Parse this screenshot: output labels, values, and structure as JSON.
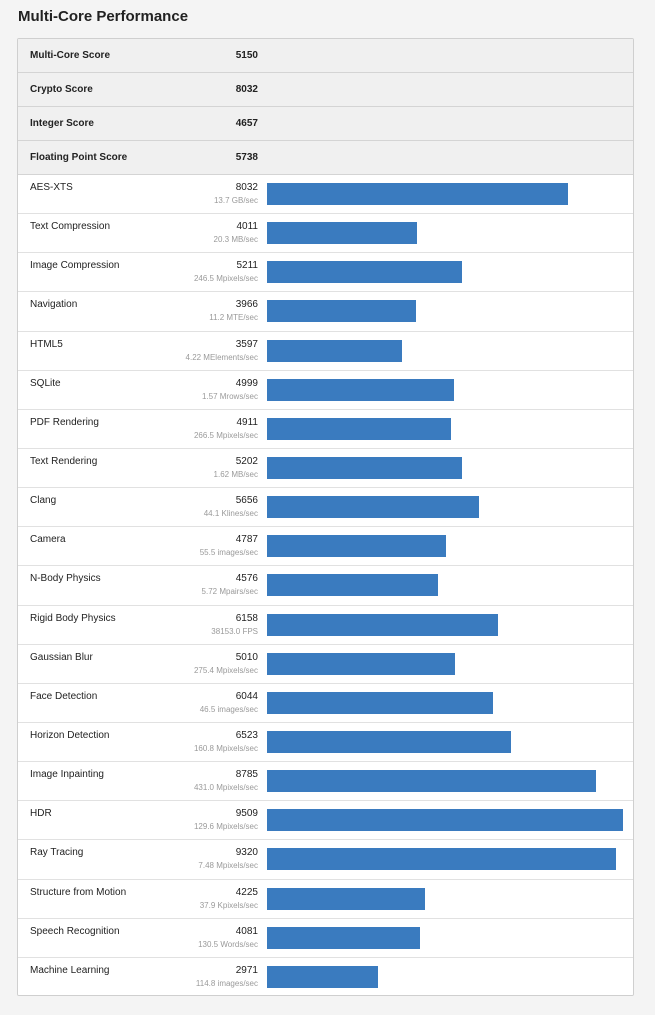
{
  "title": "Multi-Core Performance",
  "colors": {
    "bar": "#3a7bbf",
    "subtext": "#9a9a9a",
    "header_row_bg": "#f0f0f0"
  },
  "bar_max_score": 9509,
  "summary": [
    {
      "label": "Multi-Core Score",
      "value": "5150"
    },
    {
      "label": "Crypto Score",
      "value": "8032"
    },
    {
      "label": "Integer Score",
      "value": "4657"
    },
    {
      "label": "Floating Point Score",
      "value": "5738"
    }
  ],
  "benchmarks": [
    {
      "name": "AES-XTS",
      "score": "8032",
      "rate": "13.7 GB/sec"
    },
    {
      "name": "Text Compression",
      "score": "4011",
      "rate": "20.3 MB/sec"
    },
    {
      "name": "Image Compression",
      "score": "5211",
      "rate": "246.5 Mpixels/sec"
    },
    {
      "name": "Navigation",
      "score": "3966",
      "rate": "11.2 MTE/sec"
    },
    {
      "name": "HTML5",
      "score": "3597",
      "rate": "4.22 MElements/sec"
    },
    {
      "name": "SQLite",
      "score": "4999",
      "rate": "1.57 Mrows/sec"
    },
    {
      "name": "PDF Rendering",
      "score": "4911",
      "rate": "266.5 Mpixels/sec"
    },
    {
      "name": "Text Rendering",
      "score": "5202",
      "rate": "1.62 MB/sec"
    },
    {
      "name": "Clang",
      "score": "5656",
      "rate": "44.1 Klines/sec"
    },
    {
      "name": "Camera",
      "score": "4787",
      "rate": "55.5 images/sec"
    },
    {
      "name": "N-Body Physics",
      "score": "4576",
      "rate": "5.72 Mpairs/sec"
    },
    {
      "name": "Rigid Body Physics",
      "score": "6158",
      "rate": "38153.0 FPS"
    },
    {
      "name": "Gaussian Blur",
      "score": "5010",
      "rate": "275.4 Mpixels/sec"
    },
    {
      "name": "Face Detection",
      "score": "6044",
      "rate": "46.5 images/sec"
    },
    {
      "name": "Horizon Detection",
      "score": "6523",
      "rate": "160.8 Mpixels/sec"
    },
    {
      "name": "Image Inpainting",
      "score": "8785",
      "rate": "431.0 Mpixels/sec"
    },
    {
      "name": "HDR",
      "score": "9509",
      "rate": "129.6 Mpixels/sec"
    },
    {
      "name": "Ray Tracing",
      "score": "9320",
      "rate": "7.48 Mpixels/sec"
    },
    {
      "name": "Structure from Motion",
      "score": "4225",
      "rate": "37.9 Kpixels/sec"
    },
    {
      "name": "Speech Recognition",
      "score": "4081",
      "rate": "130.5 Words/sec"
    },
    {
      "name": "Machine Learning",
      "score": "2971",
      "rate": "114.8 images/sec"
    }
  ]
}
